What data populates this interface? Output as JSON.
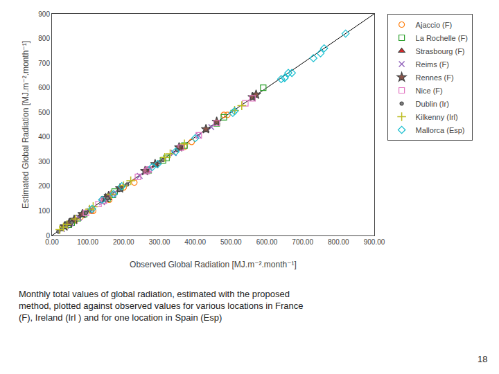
{
  "chart_data": {
    "type": "scatter",
    "xlabel": "Observed Global Radiation [MJ.m⁻².month⁻¹]",
    "ylabel": "Estimated Global Radiation [MJ.m⁻².month⁻¹]",
    "xlim": [
      0,
      900
    ],
    "ylim": [
      0,
      900
    ],
    "xticks": [
      {
        "value": 0,
        "label": "0.00"
      },
      {
        "value": 100,
        "label": "100.00"
      },
      {
        "value": 200,
        "label": "200.00"
      },
      {
        "value": 300,
        "label": "300.00"
      },
      {
        "value": 400,
        "label": "400.00"
      },
      {
        "value": 500,
        "label": "500.00"
      },
      {
        "value": 600,
        "label": "600.00"
      },
      {
        "value": 700,
        "label": "700.00"
      },
      {
        "value": 800,
        "label": "800.00"
      },
      {
        "value": 900,
        "label": "900.00"
      }
    ],
    "yticks": [
      0,
      100,
      200,
      300,
      400,
      500,
      600,
      700,
      800,
      900
    ],
    "grid": false,
    "legend": "outside right",
    "caption": "Monthly total values of global radiation, estimated with the proposed\nmethod, plotted against observed values for various locations in France\n(F), Ireland (Irl ) and for one location in Spain (Esp)",
    "caption_number": "18",
    "series": [
      {
        "type": "line",
        "color": "#000000",
        "line_style": "solid",
        "x": [
          0,
          900
        ],
        "values": [
          0,
          900
        ]
      },
      {
        "name": "Ajaccio (F)",
        "marker": "circle-open",
        "x": [
          80,
          115,
          160,
          145,
          200,
          390,
          490,
          480,
          370,
          230,
          110,
          65
        ],
        "values": [
          75,
          100,
          145,
          140,
          195,
          380,
          490,
          490,
          360,
          215,
          100,
          62
        ]
      },
      {
        "name": "La Rochelle (F)",
        "marker": "square-open",
        "x": [
          55,
          90,
          155,
          175,
          270,
          370,
          480,
          460,
          310,
          170,
          72,
          47,
          590,
          320
        ],
        "values": [
          52,
          87,
          150,
          178,
          265,
          365,
          480,
          455,
          305,
          165,
          70,
          44,
          600,
          315
        ]
      },
      {
        "name": "Strasbourg (F)",
        "marker": "triangle-up",
        "x": [
          45,
          82,
          155,
          190,
          265,
          360,
          460,
          430,
          290,
          155,
          60,
          33
        ],
        "values": [
          47,
          84,
          153,
          188,
          262,
          357,
          458,
          427,
          288,
          153,
          62,
          35
        ]
      },
      {
        "name": "Reims (F)",
        "marker": "x-thin-open",
        "x": [
          40,
          75,
          140,
          170,
          245,
          340,
          445,
          410,
          270,
          145,
          52,
          28,
          105,
          110
        ],
        "values": [
          38,
          72,
          135,
          168,
          242,
          335,
          440,
          405,
          266,
          141,
          50,
          26,
          100,
          108
        ]
      },
      {
        "name": "Rennes (F)",
        "marker": "star",
        "x": [
          48,
          85,
          150,
          190,
          260,
          355,
          460,
          430,
          288,
          158,
          62,
          35,
          560,
          570
        ],
        "values": [
          50,
          87,
          152,
          192,
          262,
          358,
          462,
          432,
          290,
          160,
          64,
          37,
          562,
          572
        ]
      },
      {
        "name": "Nice (F)",
        "marker": "square-open",
        "x": [
          130,
          170,
          240,
          270,
          360,
          460,
          560,
          540,
          410,
          265,
          145,
          95
        ],
        "values": [
          128,
          168,
          238,
          268,
          357,
          457,
          557,
          537,
          407,
          262,
          142,
          92
        ]
      },
      {
        "name": "Dublin (Ir)",
        "marker": "circle",
        "x": [
          28,
          55,
          105,
          155,
          210,
          300,
          350,
          310,
          188,
          95,
          38,
          18
        ],
        "values": [
          26,
          52,
          102,
          152,
          207,
          297,
          347,
          307,
          185,
          92,
          36,
          16
        ]
      },
      {
        "name": "Kilkenny (Irl)",
        "marker": "cross-thin-open",
        "x": [
          32,
          65,
          115,
          165,
          220,
          315,
          370,
          330,
          200,
          105,
          42,
          22,
          510,
          530
        ],
        "values": [
          34,
          67,
          117,
          167,
          222,
          317,
          372,
          332,
          202,
          107,
          44,
          24,
          508,
          527
        ]
      },
      {
        "name": "Mallorca (Esp)",
        "marker": "diamond-open",
        "x": [
          140,
          195,
          280,
          295,
          400,
          510,
          640,
          650,
          505,
          345,
          172,
          112,
          660,
          670,
          650,
          750,
          760,
          730,
          820
        ],
        "values": [
          145,
          200,
          278,
          290,
          395,
          505,
          635,
          640,
          498,
          340,
          168,
          108,
          660,
          660,
          640,
          740,
          760,
          720,
          820
        ]
      }
    ]
  }
}
